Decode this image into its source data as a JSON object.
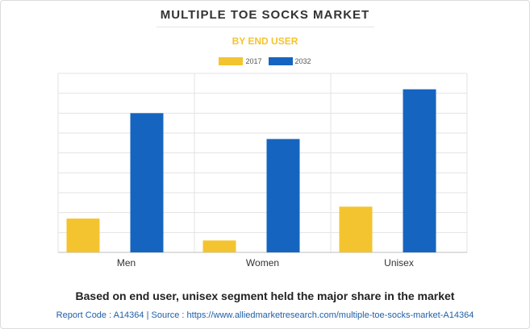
{
  "chart_data": {
    "type": "bar",
    "title": "MULTIPLE TOE SOCKS MARKET",
    "subtitle": "BY END USER",
    "categories": [
      "Men",
      "Women",
      "Unisex"
    ],
    "series": [
      {
        "name": "2017",
        "values": [
          1.7,
          0.6,
          2.3
        ]
      },
      {
        "name": "2032",
        "values": [
          7.0,
          5.7,
          8.2
        ]
      }
    ],
    "ylim": [
      0,
      9
    ],
    "grid": true,
    "y_tick_labels_shown": false,
    "legend_position": "top-center",
    "colors": {
      "2017": "#f4c430",
      "2032": "#1565c0"
    }
  },
  "footer": {
    "statement": "Based on end user, unisex segment held the major share in the market",
    "source": "Report Code : A14364  |  Source : https://www.alliedmarketresearch.com/multiple-toe-socks-market-A14364"
  }
}
